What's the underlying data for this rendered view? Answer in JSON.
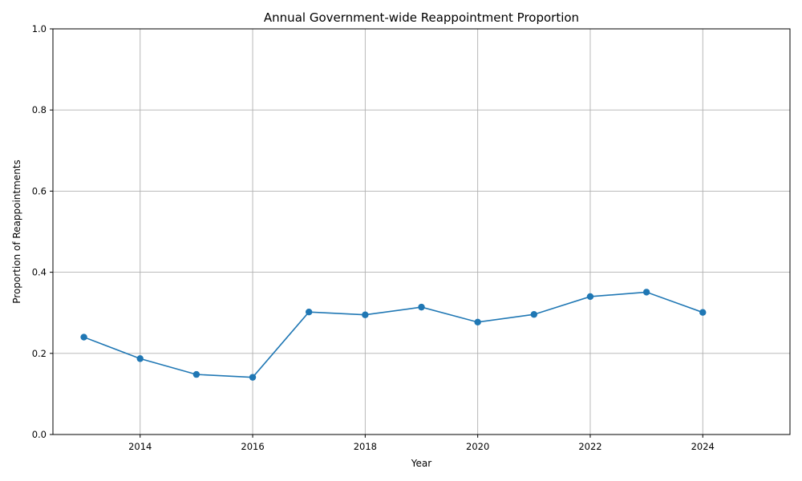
{
  "chart_data": {
    "type": "line",
    "title": "Annual Government-wide Reappointment Proportion",
    "xlabel": "Year",
    "ylabel": "Proportion of Reappointments",
    "xlim": [
      2012.45,
      2025.55
    ],
    "ylim": [
      0.0,
      1.0
    ],
    "x_ticks": [
      2014,
      2016,
      2018,
      2020,
      2022,
      2024
    ],
    "y_ticks": [
      0.0,
      0.2,
      0.4,
      0.6,
      0.8,
      1.0
    ],
    "x_tick_labels": [
      "2014",
      "2016",
      "2018",
      "2020",
      "2022",
      "2024"
    ],
    "y_tick_labels": [
      "0.0",
      "0.2",
      "0.4",
      "0.6",
      "0.8",
      "1.0"
    ],
    "grid": true,
    "marker": "circle",
    "color": "#1f77b4",
    "series": [
      {
        "x": [
          2013,
          2014,
          2015,
          2016,
          2017,
          2018,
          2019,
          2020,
          2021,
          2022,
          2023,
          2024
        ],
        "values": [
          0.24,
          0.187,
          0.148,
          0.141,
          0.302,
          0.295,
          0.314,
          0.277,
          0.296,
          0.34,
          0.351,
          0.301
        ]
      }
    ]
  }
}
